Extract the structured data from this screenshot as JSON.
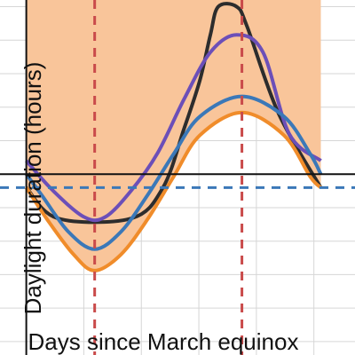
{
  "chart_data": {
    "type": "area",
    "xlabel": "Days since March equinox",
    "ylabel": "Daylight duration (hours)",
    "grid": true,
    "x_range": [
      -10,
      125
    ],
    "y_range": [
      -0.5,
      26
    ],
    "gridlines_x": [
      0,
      21.87,
      43.75,
      65.62,
      87.5,
      109.37
    ],
    "gridlines_y": [
      0.5,
      3.0,
      5.5,
      8.0,
      10.5,
      13.0,
      15.5,
      18.0,
      20.5,
      23.0,
      25.5
    ],
    "axes_major": {
      "x": 0,
      "y": 13.0
    },
    "equinox_daylight_hours": 12.0,
    "solstice_days": [
      26,
      82
    ],
    "period_days": 112,
    "series": [
      {
        "values": [
          12.0,
          9.7,
          9.7,
          12.0,
          16.4,
          20.0,
          23.4,
          25.5,
          25.5,
          24.0,
          17.5,
          12.0
        ],
        "x": [
          0,
          12,
          40,
          52,
          60,
          66,
          70,
          73,
          80,
          84,
          96,
          112
        ],
        "color": "#2d2d2d",
        "fill": "#8a8a8a"
      },
      {
        "values": [
          14.0,
          11.8,
          9.8,
          9.8,
          11.8,
          14.6,
          18.6,
          22.1,
          23.4,
          22.1,
          16.0,
          14.0
        ],
        "x": [
          0,
          10,
          22,
          30,
          40,
          50,
          60,
          70,
          80,
          90,
          100,
          112
        ],
        "color": "#6c4fb8",
        "fill": "#b4a3dc"
      },
      {
        "values": [
          13.0,
          11.4,
          8.7,
          7.4,
          8.7,
          11.4,
          14.5,
          17.3,
          18.8,
          17.3,
          14.5,
          13.0
        ],
        "x": [
          0,
          6,
          16,
          26,
          36,
          46,
          56,
          66,
          82,
          98,
          108,
          112
        ],
        "color": "#3b78b8",
        "fill": "#a9c6e2"
      },
      {
        "values": [
          12.0,
          9.6,
          7.0,
          5.8,
          7.0,
          9.6,
          12.8,
          15.9,
          17.6,
          15.9,
          12.8,
          12.0
        ],
        "x": [
          0,
          8,
          18,
          26,
          36,
          46,
          56,
          66,
          82,
          98,
          108,
          112
        ],
        "color": "#f08c2a",
        "fill": "#f9c59a"
      }
    ]
  }
}
